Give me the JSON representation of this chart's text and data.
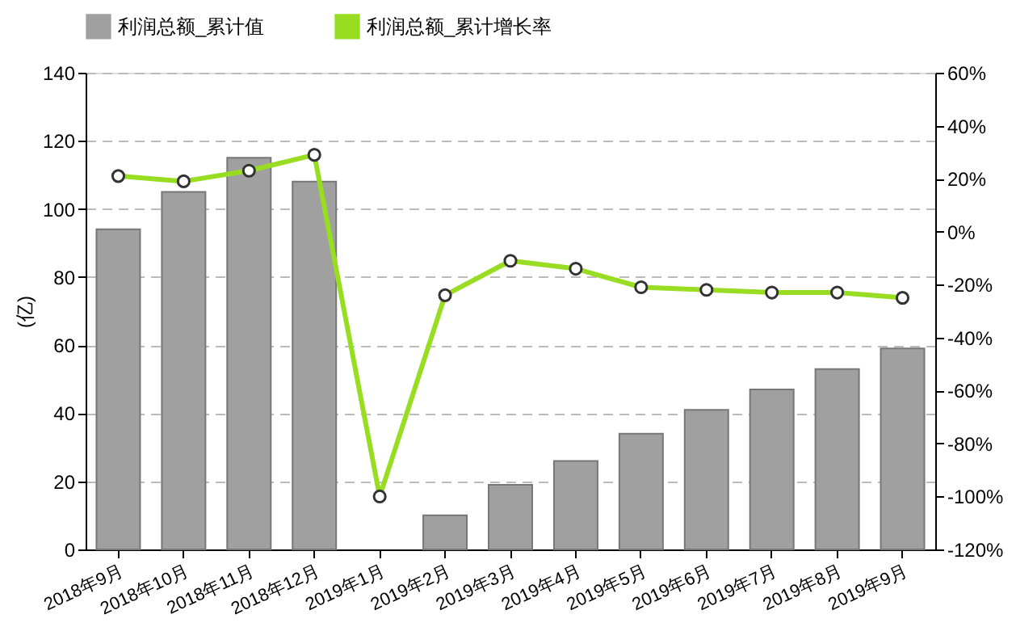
{
  "chart_data": {
    "type": "bar",
    "categories": [
      "2018年9月",
      "2018年10月",
      "2018年11月",
      "2018年12月",
      "2019年1月",
      "2019年2月",
      "2019年3月",
      "2019年4月",
      "2019年5月",
      "2019年6月",
      "2019年7月",
      "2019年8月",
      "2019年9月"
    ],
    "series": [
      {
        "name": "利润总额_累计值",
        "color": "#a0a0a0",
        "values": [
          94,
          105,
          115,
          108,
          null,
          10,
          19,
          26,
          34,
          41,
          47,
          53,
          59
        ]
      },
      {
        "name": "利润总额_累计增长率",
        "type": "line",
        "axis": "y2",
        "color": "#99dd22",
        "marker": "circle",
        "values": [
          21,
          19,
          23,
          29,
          -100,
          -24,
          -11,
          -14,
          -21,
          -22,
          -23,
          -23,
          -25
        ]
      }
    ],
    "ylabel": "(亿)",
    "ylim": [
      0,
      140
    ],
    "yticks": [
      0,
      20,
      40,
      60,
      80,
      100,
      120,
      140
    ],
    "y2lim": [
      -120,
      60
    ],
    "y2ticks": [
      {
        "value": -120,
        "label": "-120%"
      },
      {
        "value": -100,
        "label": "-100%"
      },
      {
        "value": -80,
        "label": "-80%"
      },
      {
        "value": -60,
        "label": "-60%"
      },
      {
        "value": -40,
        "label": "-40%"
      },
      {
        "value": -20,
        "label": "-20%"
      },
      {
        "value": 0,
        "label": "0%"
      },
      {
        "value": 20,
        "label": "20%"
      },
      {
        "value": 40,
        "label": "40%"
      },
      {
        "value": 60,
        "label": "60%"
      }
    ],
    "grid": "y",
    "legend": "top"
  }
}
